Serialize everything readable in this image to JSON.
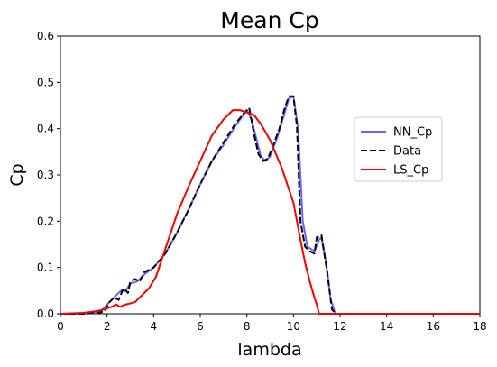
{
  "chart_data": {
    "type": "line",
    "title": "Mean Cp",
    "xlabel": "lambda",
    "ylabel": "Cp",
    "xlim": [
      0,
      18
    ],
    "ylim": [
      0,
      0.6
    ],
    "xticks": [
      0,
      2,
      4,
      6,
      8,
      10,
      12,
      14,
      16,
      18
    ],
    "yticks": [
      0.0,
      0.1,
      0.2,
      0.3,
      0.4,
      0.5,
      0.6
    ],
    "grid": false,
    "legend_position": "center-right",
    "series": [
      {
        "name": "NN_Cp",
        "color": "#6666ff",
        "dash": "solid",
        "x": [
          0,
          1,
          1.7,
          2.0,
          2.3,
          2.6,
          2.8,
          3.0,
          3.3,
          3.6,
          4.0,
          4.5,
          5.0,
          5.5,
          6.0,
          6.5,
          7.0,
          7.5,
          8.0,
          8.2,
          8.4,
          8.6,
          8.8,
          9.0,
          9.3,
          9.6,
          9.8,
          10.0,
          10.2,
          10.4,
          10.6,
          10.9,
          11.1,
          11.2,
          11.4,
          11.6,
          11.8,
          12.0,
          14,
          16,
          18
        ],
        "y": [
          0,
          0,
          0.003,
          0.02,
          0.035,
          0.05,
          0.05,
          0.065,
          0.07,
          0.085,
          0.1,
          0.13,
          0.175,
          0.225,
          0.28,
          0.33,
          0.365,
          0.405,
          0.44,
          0.42,
          0.38,
          0.34,
          0.33,
          0.34,
          0.38,
          0.43,
          0.465,
          0.47,
          0.4,
          0.2,
          0.145,
          0.135,
          0.16,
          0.165,
          0.11,
          0.03,
          0,
          0,
          0,
          0,
          0
        ]
      },
      {
        "name": "Data",
        "color": "#000000",
        "dash": "dashed",
        "x": [
          0,
          1,
          1.7,
          1.9,
          2.1,
          2.3,
          2.5,
          2.7,
          2.9,
          3.0,
          3.2,
          3.4,
          3.6,
          4.0,
          4.5,
          5.0,
          5.5,
          6.0,
          6.5,
          7.0,
          7.5,
          7.9,
          8.1,
          8.3,
          8.5,
          8.7,
          8.9,
          9.1,
          9.4,
          9.6,
          9.8,
          10.0,
          10.15,
          10.3,
          10.5,
          10.7,
          10.9,
          11.0,
          11.2,
          11.45,
          11.65,
          11.8,
          12.0,
          14,
          16,
          18
        ],
        "y": [
          0,
          0,
          0.003,
          0.005,
          0.025,
          0.035,
          0.03,
          0.055,
          0.045,
          0.07,
          0.075,
          0.07,
          0.09,
          0.1,
          0.13,
          0.175,
          0.225,
          0.28,
          0.33,
          0.37,
          0.41,
          0.435,
          0.445,
          0.39,
          0.345,
          0.33,
          0.335,
          0.36,
          0.4,
          0.44,
          0.47,
          0.47,
          0.405,
          0.2,
          0.145,
          0.135,
          0.13,
          0.165,
          0.17,
          0.09,
          0.01,
          0,
          0,
          0,
          0,
          0
        ]
      },
      {
        "name": "LS_Cp",
        "color": "#ee0000",
        "dash": "solid",
        "x": [
          0,
          1,
          1.6,
          1.9,
          2.2,
          2.4,
          2.55,
          2.8,
          3.2,
          3.5,
          3.8,
          4.1,
          4.5,
          5.0,
          5.5,
          6.0,
          6.5,
          7.0,
          7.4,
          7.7,
          8.0,
          8.3,
          8.6,
          9.0,
          9.5,
          10.0,
          10.3,
          10.5,
          10.7,
          10.9,
          11.0,
          11.1,
          12,
          14,
          16,
          18
        ],
        "y": [
          0,
          0.002,
          0.006,
          0.01,
          0.015,
          0.02,
          0.015,
          0.02,
          0.025,
          0.04,
          0.055,
          0.08,
          0.14,
          0.215,
          0.275,
          0.33,
          0.385,
          0.42,
          0.44,
          0.44,
          0.435,
          0.43,
          0.41,
          0.375,
          0.315,
          0.24,
          0.16,
          0.11,
          0.07,
          0.035,
          0.02,
          0,
          0,
          0,
          0,
          0
        ]
      }
    ]
  }
}
